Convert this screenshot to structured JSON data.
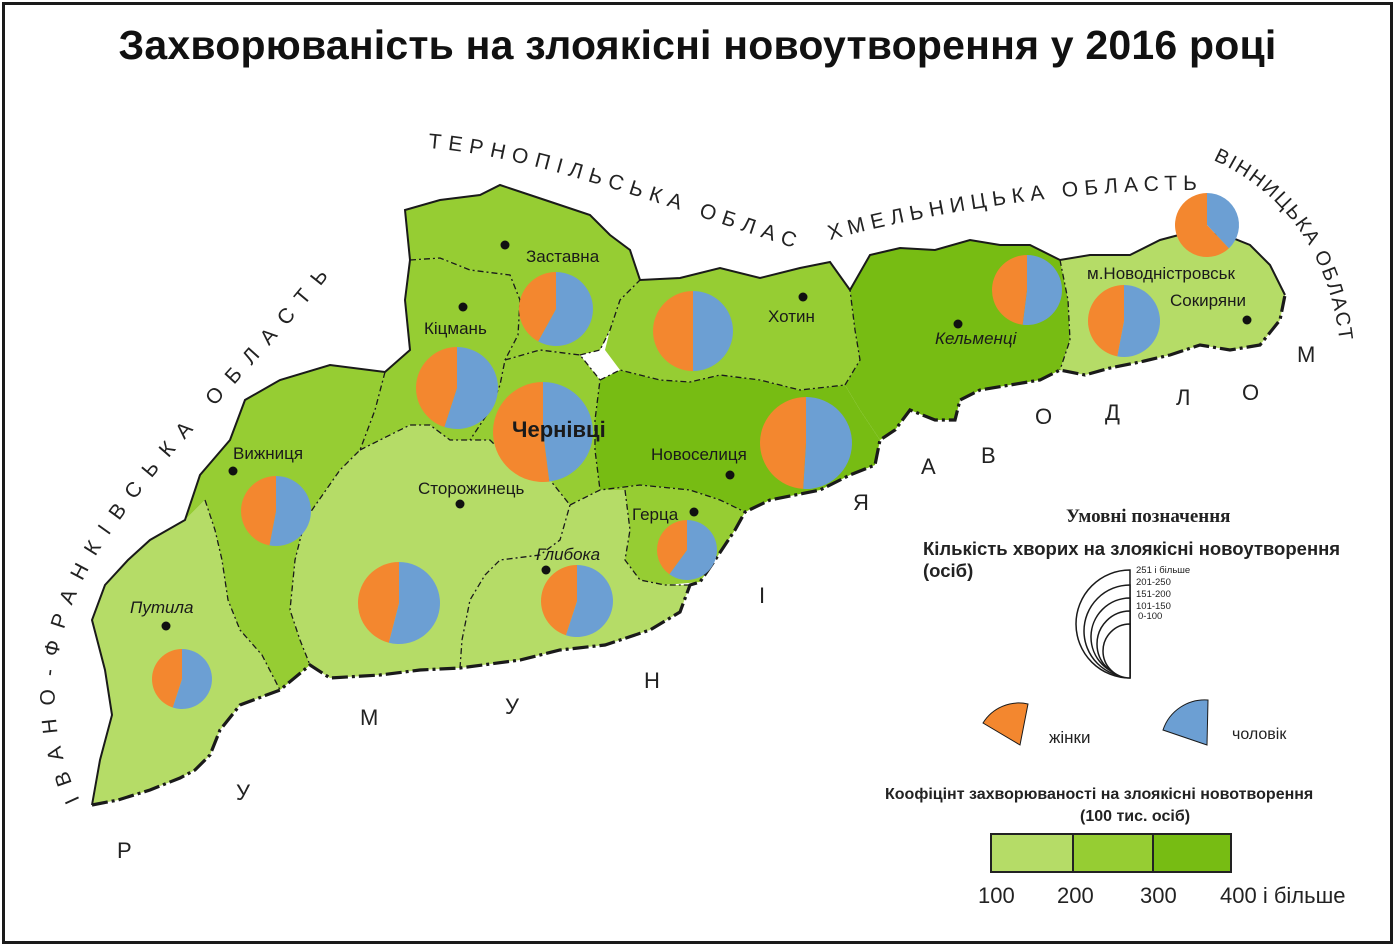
{
  "title": "Захворюваність на злоякісні новоутворення у 2016 році",
  "colors": {
    "class_100_200": "#b5dc67",
    "class_200_300": "#96cd33",
    "class_300_400": "#77bc13",
    "women": "#f3872f",
    "men": "#6c9fd3",
    "border": "#1a1a1a"
  },
  "cities": {
    "chernivtsi": "Чернівці",
    "zastavna": "Заставна",
    "khotyn": "Хотин",
    "kitsman": "Кіцмань",
    "kelmentsi": "Кельменці",
    "novodnistrovsk": "м.Новодністровськ",
    "sokyriany": "Сокиряни",
    "vyzhnytsia": "Вижниця",
    "novoselytsia": "Новоселиця",
    "storozhynets": "Сторожинець",
    "hertsa": "Герца",
    "hlyboka": "Глибока",
    "putyla": "Путила"
  },
  "neighbors": {
    "ternopil": "ТЕРНОПІЛЬСЬКА ОБЛАСТЬ",
    "khmelnytskyi": "ХМЕЛЬНИЦЬКА ОБЛАСТЬ",
    "vinnytsia": "ВІННИЦЬКА ОБЛАСТЬ",
    "ivano_frankivsk": "ІВАНО-ФРАНКІВСЬКА ОБЛАСТЬ",
    "moldova": "МОЛДОВА",
    "romania": "РУМУНІЯ"
  },
  "legend": {
    "title": "Умовні позначення",
    "count_title": "Кількість хворих на злоякісні новоутворення (осіб)",
    "size_classes": [
      "251 і більше",
      "201-250",
      "151-200",
      "101-150",
      "0-100"
    ],
    "women": "жінки",
    "men": "чоловік",
    "coef_title_line1": "Коофіцінт захворюваності на злоякісні новотворення",
    "coef_title_line2": "(100 тис. осіб)",
    "scale_labels": [
      "100",
      "200",
      "300",
      "400 і більше"
    ]
  }
}
